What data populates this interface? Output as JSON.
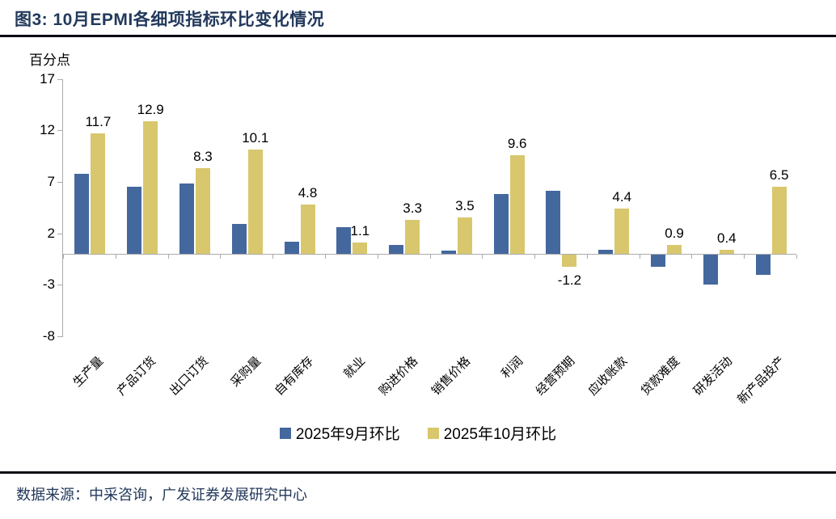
{
  "header": {
    "title": "图3: 10月EPMI各细项指标环比变化情况"
  },
  "chart_data": {
    "type": "bar",
    "title": "图3: 10月EPMI各细项指标环比变化情况",
    "unit_label": "百分点",
    "categories": [
      "生产量",
      "产品订货",
      "出口订货",
      "采购量",
      "自有库存",
      "就业",
      "购进价格",
      "销售价格",
      "利润",
      "经营预期",
      "应收账款",
      "贷款难度",
      "研发活动",
      "新产品投产"
    ],
    "series": [
      {
        "name": "2025年9月环比",
        "color": "#44689E",
        "data_labels": false,
        "values": [
          7.8,
          6.5,
          6.8,
          2.9,
          1.2,
          2.6,
          0.9,
          0.3,
          5.8,
          6.1,
          0.4,
          -1.2,
          -2.9,
          -2.0
        ]
      },
      {
        "name": "2025年10月环比",
        "color": "#D8C76D",
        "data_labels": true,
        "values": [
          11.7,
          12.9,
          8.3,
          10.1,
          4.8,
          1.1,
          3.3,
          3.5,
          9.6,
          -1.2,
          4.4,
          0.9,
          0.4,
          6.5
        ]
      }
    ],
    "y_ticks": [
      17,
      12,
      7,
      2,
      -3,
      -8
    ],
    "ylim": [
      -8,
      17
    ],
    "grid": false,
    "legend_position": "bottom"
  },
  "footer": {
    "source": "数据来源：中采咨询，广发证券发展研究中心"
  },
  "colors": {
    "title_navy": "#22395C",
    "bar_september": "#44689E",
    "bar_october": "#D8C76D",
    "axis_gray": "#ABABAB",
    "rule_black": "#0A0A14",
    "label_black": "#000000"
  }
}
